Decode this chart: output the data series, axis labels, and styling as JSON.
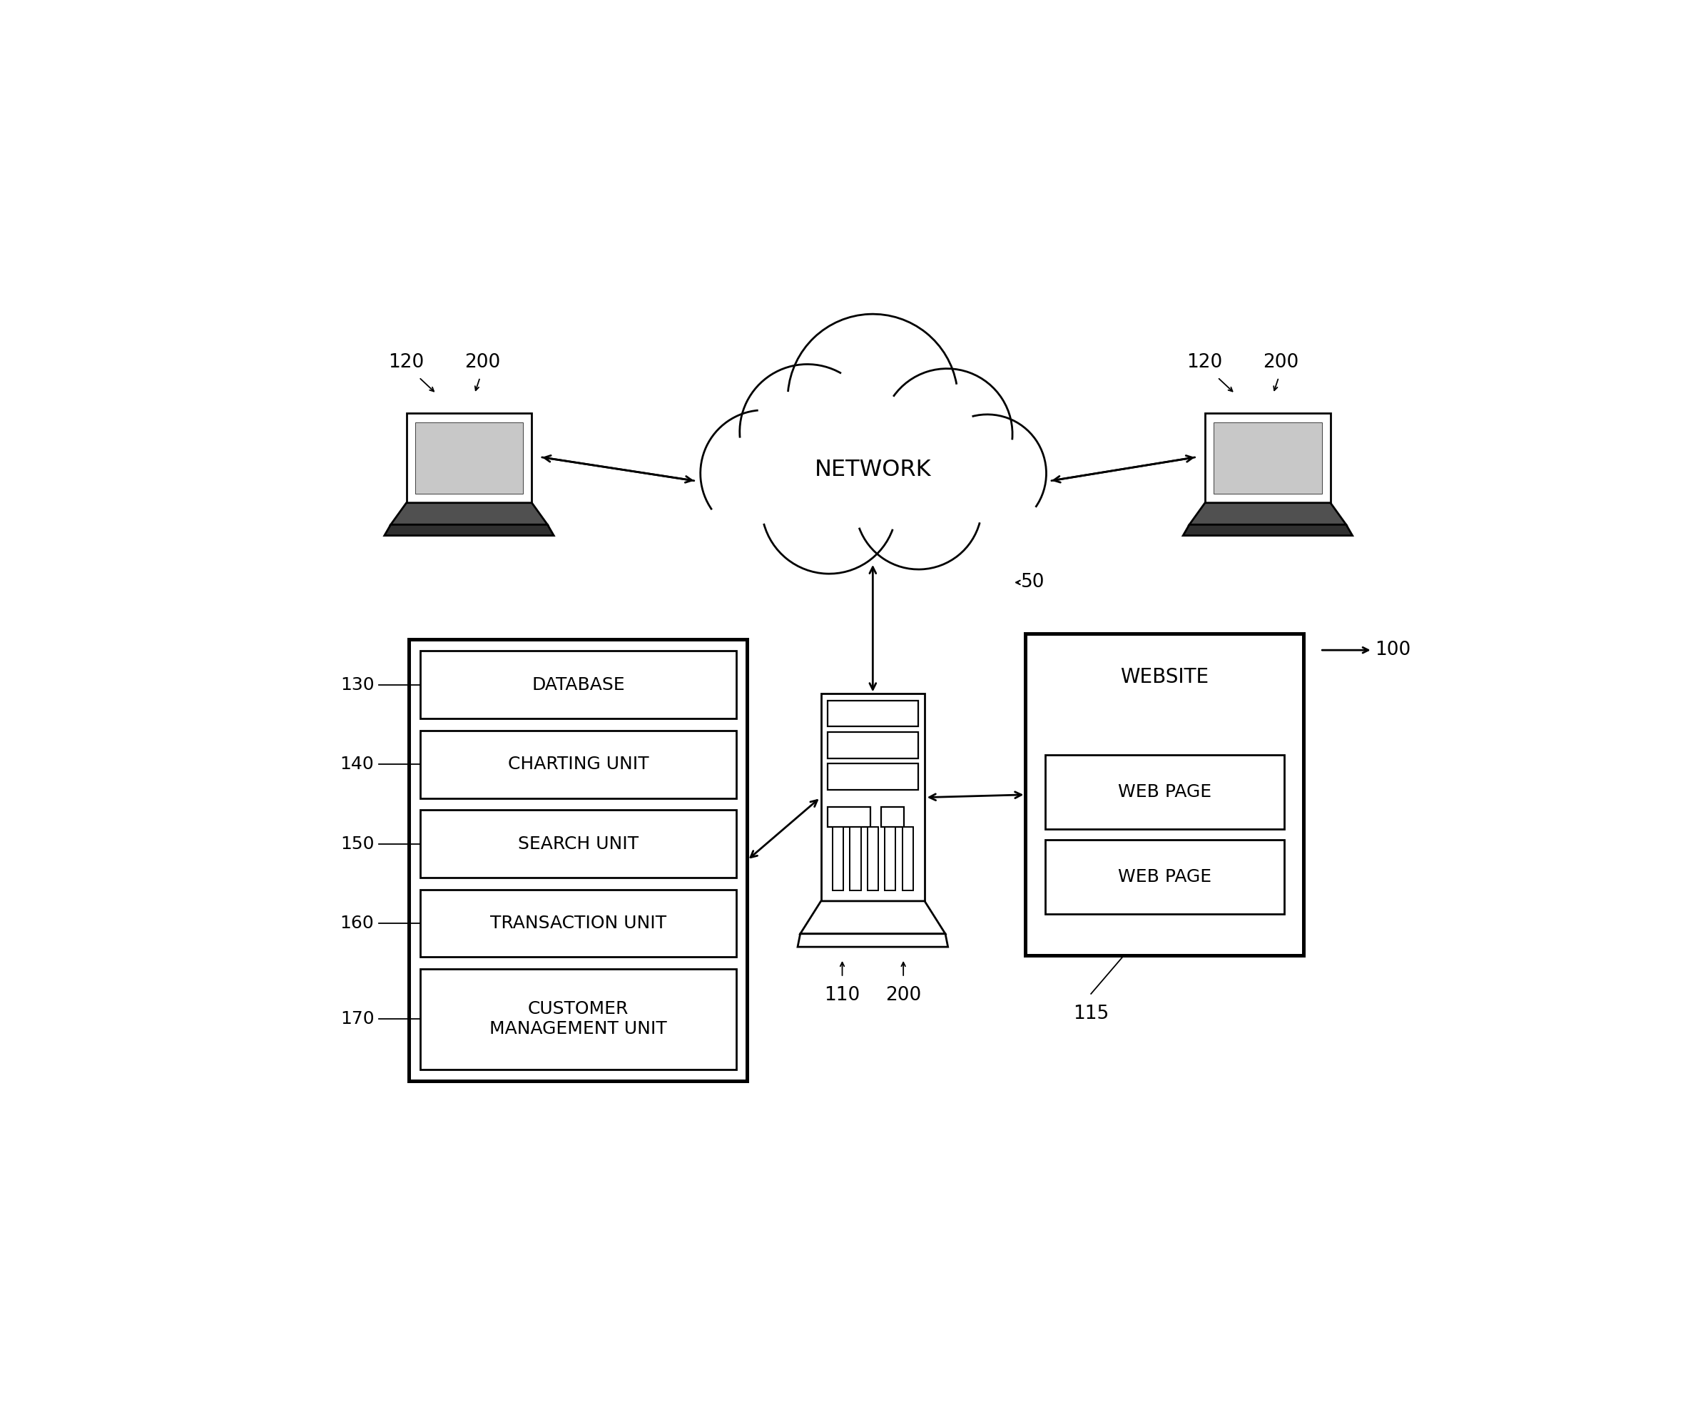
{
  "bg_color": "#ffffff",
  "line_color": "#000000",
  "text_color": "#000000",
  "fig_width": 23.87,
  "fig_height": 19.86,
  "labels": {
    "network": "NETWORK",
    "database": "DATABASE",
    "charting": "CHARTING UNIT",
    "search": "SEARCH UNIT",
    "transaction": "TRANSACTION UNIT",
    "customer": "CUSTOMER\nMANAGEMENT UNIT",
    "website": "WEBSITE",
    "web_page1": "WEB PAGE",
    "web_page2": "WEB PAGE",
    "ref_100": "100",
    "ref_50": "50",
    "ref_110": "110",
    "ref_200_server": "200",
    "ref_120_left": "120",
    "ref_200_left": "200",
    "ref_120_right": "120",
    "ref_200_right": "200",
    "ref_130": "130",
    "ref_140": "140",
    "ref_150": "150",
    "ref_160": "160",
    "ref_170": "170",
    "ref_115": "115"
  }
}
